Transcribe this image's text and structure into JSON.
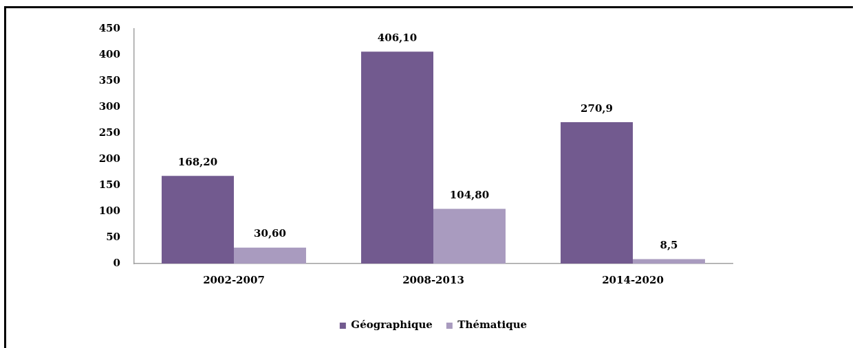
{
  "chart_data": {
    "type": "bar",
    "categories": [
      "2002-2007",
      "2008-2013",
      "2014-2020"
    ],
    "series": [
      {
        "name": "Géographique",
        "color": "#725a8f",
        "values": [
          168.2,
          406.1,
          270.9
        ],
        "value_labels": [
          "168,20",
          "406,10",
          "270,9"
        ]
      },
      {
        "name": "Thématique",
        "color": "#a99bbf",
        "values": [
          30.6,
          104.8,
          8.5
        ],
        "value_labels": [
          "30,60",
          "104,80",
          "8,5"
        ]
      }
    ],
    "ylim": [
      0,
      450
    ],
    "yticks": [
      0,
      50,
      100,
      150,
      200,
      250,
      300,
      350,
      400,
      450
    ],
    "legend": "bottom"
  }
}
